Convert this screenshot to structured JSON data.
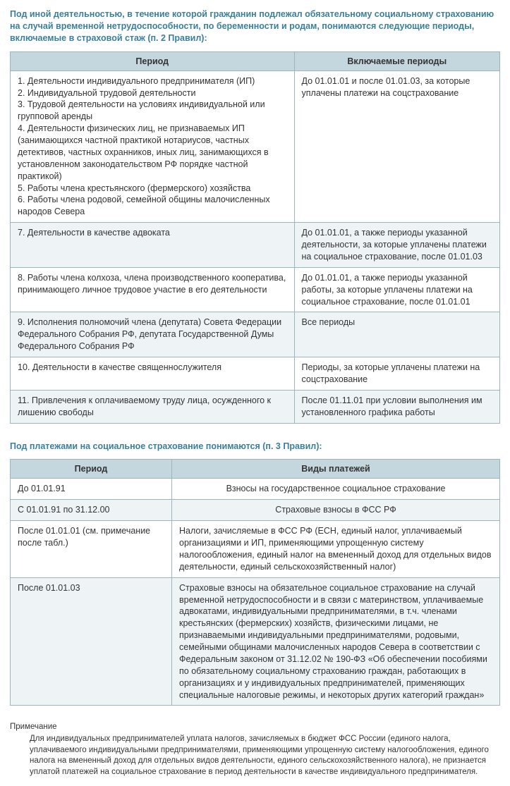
{
  "heading1": "Под иной деятельностью, в течение которой гражданин подлежал обязательному социальному страхованию на случай временной нетрудоспособности, по беременности и родам, понимаются следующие периоды, включаемые в страховой стаж (п. 2 Правил):",
  "table1": {
    "header": {
      "col1": "Период",
      "col2": "Включаемые периоды"
    },
    "rows": [
      {
        "alt": false,
        "c1": "1. Деятельности индивидуального предпринимателя (ИП)\n2. Индивидуальной трудовой деятельности\n3. Трудовой деятельности на условиях индивидуальной или групповой аренды\n4. Деятельности физических лиц, не признаваемых ИП (занимающихся частной практикой нотариусов, частных детективов, частных охранников, иных лиц, занимающихся в установленном законодательством РФ порядке частной практикой)\n5. Работы члена крестьянского (фермерского) хозяйства\n6. Работы члена родовой, семейной общины малочисленных народов Севера",
        "c2": "До 01.01.01 и после 01.01.03, за которые уплачены платежи на соцстрахование"
      },
      {
        "alt": true,
        "c1": "7. Деятельности в качестве адвоката",
        "c2": "До 01.01.01, а также периоды указанной деятельности, за которые уплачены платежи на социальное страхование, после 01.01.03"
      },
      {
        "alt": false,
        "c1": "8. Работы члена колхоза, члена производственного кооператива, принимающего личное трудовое участие в его деятельности",
        "c2": "До 01.01.01, а также периоды указанной работы, за которые уплачены платежи на социальное страхование, после 01.01.01"
      },
      {
        "alt": true,
        "c1": "9. Исполнения полномочий члена (депутата) Совета Федерации Федерального Собрания РФ, депутата Государственной Думы Федерального Собрания РФ",
        "c2": "Все периоды"
      },
      {
        "alt": false,
        "c1": "10. Деятельности в качестве священнослужителя",
        "c2": "Периоды, за которые уплачены платежи на соцстрахование"
      },
      {
        "alt": true,
        "c1": "11. Привлечения к оплачиваемому труду лица, осужденного к лишению свободы",
        "c2": "После 01.11.01 при условии выполнения им установленного графика работы"
      }
    ]
  },
  "heading2": "Под платежами на социальное страхование понимаются (п. 3 Правил):",
  "table2": {
    "header": {
      "col1": "Период",
      "col2": "Виды платежей"
    },
    "rows": [
      {
        "alt": false,
        "center": true,
        "c1": "До 01.01.91",
        "c2": "Взносы на государственное социальное страхование"
      },
      {
        "alt": true,
        "center": true,
        "c1": "С 01.01.91 по 31.12.00",
        "c2": "Страховые взносы в ФСС РФ"
      },
      {
        "alt": false,
        "center": false,
        "c1": "После 01.01.01 (см. примечание после табл.)",
        "c2": "Налоги, зачисляемые в ФСС РФ (ЕСН, единый налог, уплачиваемый организациями и ИП, применяющими упрощенную систему налогообложения, единый налог на вмененный доход для отдельных видов деятельности, единый сельскохозяйственный налог)"
      },
      {
        "alt": true,
        "center": false,
        "c1": "После 01.01.03",
        "c2": "Страховые взносы на обязательное социальное страхование на случай временной нетрудоспособности и в связи с материнством, уплачиваемые адвокатами, индивидуальными предпринимателями, в т.ч. членами крестьянских (фермерских) хозяйств, физическими лицами, не признаваемыми индивидуальными предпринимателями, родовыми, семейными общинами малочисленных народов Севера в соответствии с Федеральным законом от 31.12.02 № 190-ФЗ «Об обеспечении пособиями по обязательному социальному страхованию граждан, работающих в организациях и у индивидуальных предпринимателей, применяющих специальные налоговые режимы, и некоторых других категорий граждан»"
      }
    ]
  },
  "note": {
    "label": "Примечание",
    "body": "Для индивидуальных предпринимателей уплата налогов, зачисляемых в бюджет ФСС России (единого налога, уплачиваемого индивидуальными предпринимателями, применяющими упрощенную систему налогообложения, единого налога на вмененный доход для отдельных видов деятельности, единого сельскохозяйственного налога), не признается уплатой платежей на социальное страхование в период деятельности в качестве индивидуального предпринимателя."
  }
}
